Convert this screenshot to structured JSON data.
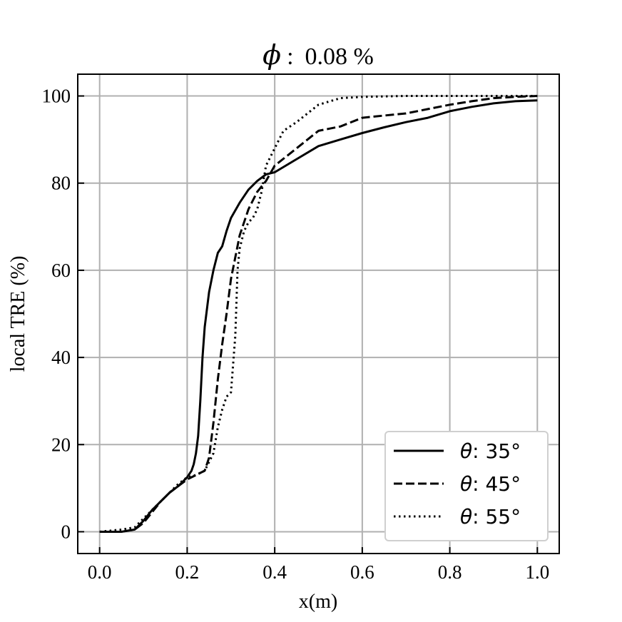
{
  "chart_data": {
    "type": "line",
    "title_symbol": "ϕ",
    "title_separator": ":",
    "title_value": "0.08 %",
    "xlabel": "x(m)",
    "ylabel": "local TRE (%)",
    "xlim": [
      -0.05,
      1.05
    ],
    "ylim": [
      -5,
      105
    ],
    "xticks": [
      0.0,
      0.2,
      0.4,
      0.6,
      0.8,
      1.0
    ],
    "xtick_labels": [
      "0.0",
      "0.2",
      "0.4",
      "0.6",
      "0.8",
      "1.0"
    ],
    "yticks": [
      0,
      20,
      40,
      60,
      80,
      100
    ],
    "ytick_labels": [
      "0",
      "20",
      "40",
      "60",
      "80",
      "100"
    ],
    "grid": true,
    "legend_position": "bottom-right",
    "series": [
      {
        "name_symbol": "θ",
        "name_value": ": 35°",
        "dash": "solid",
        "x": [
          0.0,
          0.05,
          0.08,
          0.1,
          0.12,
          0.14,
          0.16,
          0.18,
          0.2,
          0.21,
          0.215,
          0.22,
          0.225,
          0.23,
          0.235,
          0.24,
          0.25,
          0.26,
          0.27,
          0.28,
          0.29,
          0.3,
          0.32,
          0.34,
          0.36,
          0.38,
          0.4,
          0.45,
          0.5,
          0.55,
          0.6,
          0.65,
          0.7,
          0.75,
          0.8,
          0.85,
          0.9,
          0.95,
          1.0
        ],
        "y": [
          0,
          0,
          0.5,
          2.5,
          5,
          7,
          9,
          10.5,
          12.5,
          14,
          15.5,
          18,
          22,
          30,
          40,
          47,
          55,
          60,
          64,
          65.5,
          69,
          72,
          75.5,
          78.5,
          80.5,
          82,
          82.5,
          85.5,
          88.5,
          90,
          91.5,
          92.8,
          94,
          95,
          96.5,
          97.5,
          98.3,
          98.8,
          99
        ]
      },
      {
        "name_symbol": "θ",
        "name_value": ": 45°",
        "dash": "dashed",
        "x": [
          0.0,
          0.05,
          0.08,
          0.1,
          0.12,
          0.14,
          0.16,
          0.18,
          0.2,
          0.22,
          0.24,
          0.25,
          0.26,
          0.27,
          0.28,
          0.29,
          0.3,
          0.31,
          0.32,
          0.34,
          0.36,
          0.38,
          0.4,
          0.45,
          0.5,
          0.55,
          0.6,
          0.65,
          0.7,
          0.75,
          0.8,
          0.85,
          0.9,
          0.95,
          1.0
        ],
        "y": [
          0,
          0,
          0.5,
          2,
          4.5,
          7,
          9,
          10.5,
          12,
          13,
          14,
          17,
          25,
          35,
          43,
          50,
          58,
          63,
          68,
          74,
          78,
          80.5,
          84,
          88,
          92,
          93,
          95,
          95.5,
          96,
          97,
          98,
          98.8,
          99.5,
          99.8,
          100
        ]
      },
      {
        "name_symbol": "θ",
        "name_value": ": 55°",
        "dash": "dotted",
        "x": [
          0.0,
          0.05,
          0.08,
          0.1,
          0.12,
          0.14,
          0.16,
          0.18,
          0.2,
          0.22,
          0.24,
          0.26,
          0.27,
          0.28,
          0.29,
          0.3,
          0.31,
          0.315,
          0.32,
          0.33,
          0.34,
          0.35,
          0.36,
          0.37,
          0.38,
          0.39,
          0.4,
          0.42,
          0.45,
          0.5,
          0.55,
          0.6,
          0.7,
          0.8,
          0.9,
          1.0
        ],
        "y": [
          0,
          0.5,
          1,
          3,
          5,
          7,
          9,
          11,
          12.5,
          13,
          14,
          18,
          24,
          28,
          31,
          32,
          45,
          60,
          65,
          69,
          71,
          72,
          74,
          78,
          84,
          86,
          88,
          92,
          94,
          98,
          99.5,
          99.8,
          100,
          100,
          100,
          100
        ]
      }
    ]
  }
}
